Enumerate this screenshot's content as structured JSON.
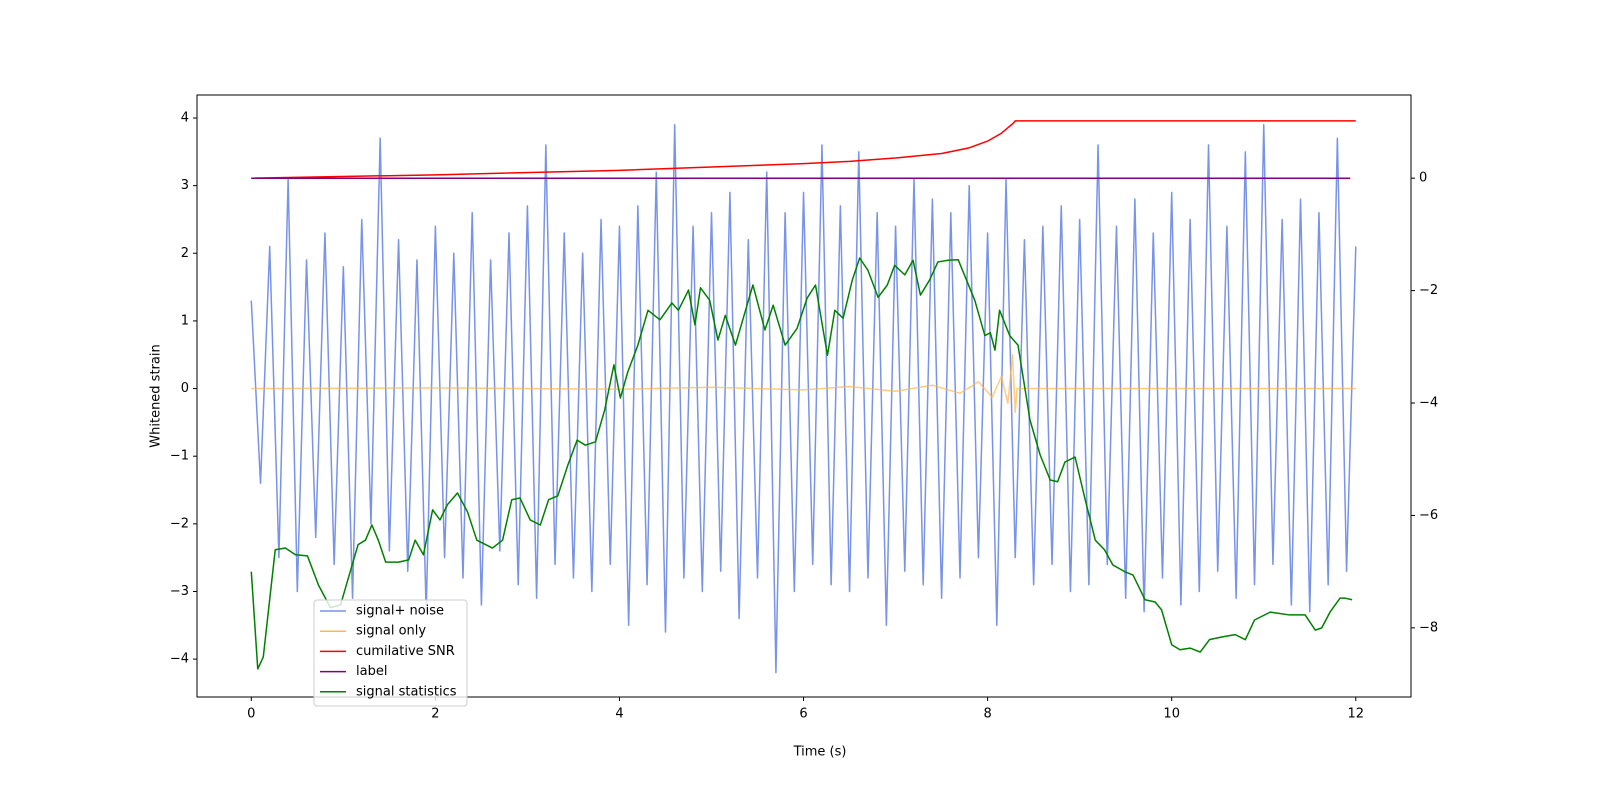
{
  "chart_data": {
    "type": "line",
    "xlabel": "Time (s)",
    "ylabel": "Whitened strain",
    "xlim": [
      -0.59,
      12.6
    ],
    "ylim": [
      -4.56,
      4.34
    ],
    "y2lim": [
      -9.23,
      1.48
    ],
    "xticks": [
      0,
      2,
      4,
      6,
      8,
      10,
      12
    ],
    "yticks": [
      {
        "value": -4,
        "label": "−4"
      },
      {
        "value": -3,
        "label": "−3"
      },
      {
        "value": -2,
        "label": "−2"
      },
      {
        "value": -1,
        "label": "−1"
      },
      0,
      1,
      2,
      3,
      4
    ],
    "y2ticks": [
      {
        "value": -8,
        "label": "−8"
      },
      {
        "value": -6,
        "label": "−6"
      },
      {
        "value": -4,
        "label": "−4"
      },
      {
        "value": -2,
        "label": "−2"
      },
      0
    ],
    "series": [
      {
        "name": "signal+ noise",
        "color": "#7893e8",
        "x": [
          0,
          0.1,
          0.2,
          0.3,
          0.4,
          0.5,
          0.6,
          0.7,
          0.8,
          0.9,
          1,
          1.1,
          1.2,
          1.3,
          1.4,
          1.5,
          1.6,
          1.7,
          1.8,
          1.9,
          2,
          2.1,
          2.2,
          2.3,
          2.4,
          2.5,
          2.6,
          2.7,
          2.8,
          2.9,
          3,
          3.1,
          3.2,
          3.3,
          3.4,
          3.5,
          3.6,
          3.7,
          3.8,
          3.9,
          4,
          4.1,
          4.2,
          4.3,
          4.4,
          4.5,
          4.6,
          4.7,
          4.8,
          4.9,
          5,
          5.1,
          5.2,
          5.3,
          5.4,
          5.5,
          5.6,
          5.7,
          5.8,
          5.9,
          6,
          6.1,
          6.2,
          6.3,
          6.4,
          6.5,
          6.6,
          6.7,
          6.8,
          6.9,
          7,
          7.1,
          7.2,
          7.3,
          7.4,
          7.5,
          7.6,
          7.7,
          7.8,
          7.9,
          8,
          8.1,
          8.2,
          8.3,
          8.4,
          8.5,
          8.6,
          8.7,
          8.8,
          8.9,
          9,
          9.1,
          9.2,
          9.3,
          9.4,
          9.5,
          9.6,
          9.7,
          9.8,
          9.9,
          10,
          10.1,
          10.2,
          10.3,
          10.4,
          10.5,
          10.6,
          10.7,
          10.8,
          10.9,
          11,
          11.1,
          11.2,
          11.3,
          11.4,
          11.5,
          11.6,
          11.7,
          11.8,
          11.9,
          12
        ],
        "values": [
          1.3,
          -1.4,
          2.1,
          -2.5,
          3.1,
          -3.0,
          1.9,
          -2.2,
          2.3,
          -2.6,
          1.8,
          -3.1,
          2.5,
          -2.0,
          3.7,
          -2.4,
          2.2,
          -2.7,
          1.9,
          -3.3,
          2.4,
          -2.5,
          2.0,
          -2.8,
          2.6,
          -3.2,
          1.9,
          -2.4,
          2.3,
          -2.9,
          2.7,
          -3.1,
          3.6,
          -2.6,
          2.3,
          -2.8,
          2.0,
          -3.0,
          2.5,
          -2.6,
          2.4,
          -3.5,
          2.7,
          -2.9,
          3.2,
          -3.6,
          3.9,
          -2.8,
          2.4,
          -3.0,
          2.6,
          -2.7,
          2.9,
          -3.4,
          2.2,
          -2.8,
          3.2,
          -4.2,
          2.6,
          -3.0,
          2.9,
          -2.6,
          3.6,
          -2.9,
          2.7,
          -3.0,
          3.5,
          -2.8,
          2.6,
          -3.5,
          2.4,
          -2.7,
          3.1,
          -2.9,
          2.8,
          -3.1,
          2.6,
          -2.8,
          3.0,
          -2.5,
          2.3,
          -3.5,
          3.1,
          -2.5,
          2.2,
          -2.9,
          2.4,
          -2.6,
          2.7,
          -3.0,
          2.5,
          -2.9,
          3.6,
          -2.6,
          2.4,
          -3.1,
          2.8,
          -3.3,
          2.3,
          -2.8,
          2.9,
          -3.2,
          2.5,
          -3.0,
          3.6,
          -2.7,
          2.4,
          -3.1,
          3.5,
          -2.9,
          3.9,
          -2.6,
          2.5,
          -3.2,
          2.8,
          -3.3,
          2.6,
          -2.9,
          3.7,
          -2.7,
          2.1
        ]
      },
      {
        "name": "signal only",
        "color": "#ffb74d",
        "x": [
          0,
          2,
          4,
          5,
          6,
          6.5,
          7,
          7.4,
          7.7,
          7.9,
          8.05,
          8.15,
          8.22,
          8.27,
          8.3,
          8.32,
          12
        ],
        "values": [
          0,
          0.01,
          -0.01,
          0.02,
          -0.02,
          0.03,
          -0.04,
          0.05,
          -0.07,
          0.1,
          -0.13,
          0.18,
          -0.22,
          0.5,
          -0.35,
          0,
          0
        ]
      },
      {
        "name": "cumilative SNR",
        "color": "#ff0000",
        "axis": "y2",
        "x": [
          0,
          2,
          4,
          5,
          6,
          6.5,
          7,
          7.5,
          7.8,
          8.0,
          8.15,
          8.28,
          8.3,
          12
        ],
        "values": [
          0,
          0.06,
          0.14,
          0.2,
          0.26,
          0.3,
          0.36,
          0.44,
          0.54,
          0.66,
          0.8,
          0.98,
          1.02,
          1.02
        ]
      },
      {
        "name": "label",
        "color": "#800080",
        "axis": "y2",
        "x": [
          0,
          11.94
        ],
        "values": [
          0,
          0
        ]
      },
      {
        "name": "signal statistics",
        "color": "#008000",
        "axis": "y2",
        "x": [
          0,
          0.07,
          0.13,
          0.26,
          0.37,
          0.48,
          0.61,
          0.73,
          0.86,
          0.97,
          1.08,
          1.16,
          1.24,
          1.31,
          1.38,
          1.46,
          1.6,
          1.71,
          1.78,
          1.87,
          1.97,
          2.05,
          2.13,
          2.24,
          2.35,
          2.45,
          2.62,
          2.73,
          2.83,
          2.92,
          3.03,
          3.14,
          3.23,
          3.33,
          3.44,
          3.54,
          3.63,
          3.74,
          3.84,
          3.94,
          4.01,
          4.09,
          4.2,
          4.31,
          4.44,
          4.57,
          4.64,
          4.75,
          4.82,
          4.88,
          4.98,
          5.07,
          5.15,
          5.26,
          5.37,
          5.45,
          5.58,
          5.67,
          5.8,
          5.93,
          6.04,
          6.13,
          6.26,
          6.34,
          6.43,
          6.53,
          6.61,
          6.7,
          6.81,
          6.91,
          6.99,
          7.1,
          7.19,
          7.27,
          7.37,
          7.46,
          7.57,
          7.68,
          7.86,
          7.97,
          8.03,
          8.08,
          8.13,
          8.24,
          8.33,
          8.46,
          8.57,
          8.68,
          8.76,
          8.84,
          8.95,
          9.06,
          9.17,
          9.27,
          9.36,
          9.49,
          9.58,
          9.71,
          9.82,
          9.89,
          10.0,
          10.09,
          10.2,
          10.31,
          10.41,
          10.55,
          10.69,
          10.8,
          10.9,
          11.07,
          11.28,
          11.45,
          11.56,
          11.63,
          11.72,
          11.83,
          11.88,
          11.96
        ],
        "values": [
          -7.0,
          -8.73,
          -8.52,
          -6.61,
          -6.58,
          -6.7,
          -6.72,
          -7.24,
          -7.64,
          -7.59,
          -6.97,
          -6.52,
          -6.44,
          -6.17,
          -6.44,
          -6.83,
          -6.83,
          -6.79,
          -6.44,
          -6.7,
          -5.9,
          -6.08,
          -5.81,
          -5.6,
          -5.94,
          -6.44,
          -6.58,
          -6.44,
          -5.72,
          -5.69,
          -6.08,
          -6.17,
          -5.72,
          -5.65,
          -5.1,
          -4.66,
          -4.75,
          -4.69,
          -4.12,
          -3.32,
          -3.91,
          -3.45,
          -2.97,
          -2.35,
          -2.52,
          -2.22,
          -2.35,
          -1.99,
          -2.61,
          -1.95,
          -2.17,
          -2.88,
          -2.44,
          -2.97,
          -2.35,
          -1.9,
          -2.7,
          -2.26,
          -2.97,
          -2.67,
          -2.13,
          -1.9,
          -3.15,
          -2.35,
          -2.49,
          -1.81,
          -1.42,
          -1.64,
          -2.12,
          -1.9,
          -1.55,
          -1.72,
          -1.46,
          -2.08,
          -1.81,
          -1.49,
          -1.46,
          -1.45,
          -2.17,
          -2.8,
          -2.75,
          -3.06,
          -2.35,
          -2.8,
          -2.97,
          -4.3,
          -4.92,
          -5.37,
          -5.4,
          -5.05,
          -4.96,
          -5.72,
          -6.44,
          -6.61,
          -6.88,
          -7.0,
          -7.06,
          -7.5,
          -7.54,
          -7.68,
          -8.3,
          -8.39,
          -8.36,
          -8.43,
          -8.21,
          -8.16,
          -8.12,
          -8.21,
          -7.86,
          -7.72,
          -7.77,
          -7.77,
          -8.04,
          -8.0,
          -7.72,
          -7.47,
          -7.47,
          -7.5
        ]
      }
    ]
  }
}
